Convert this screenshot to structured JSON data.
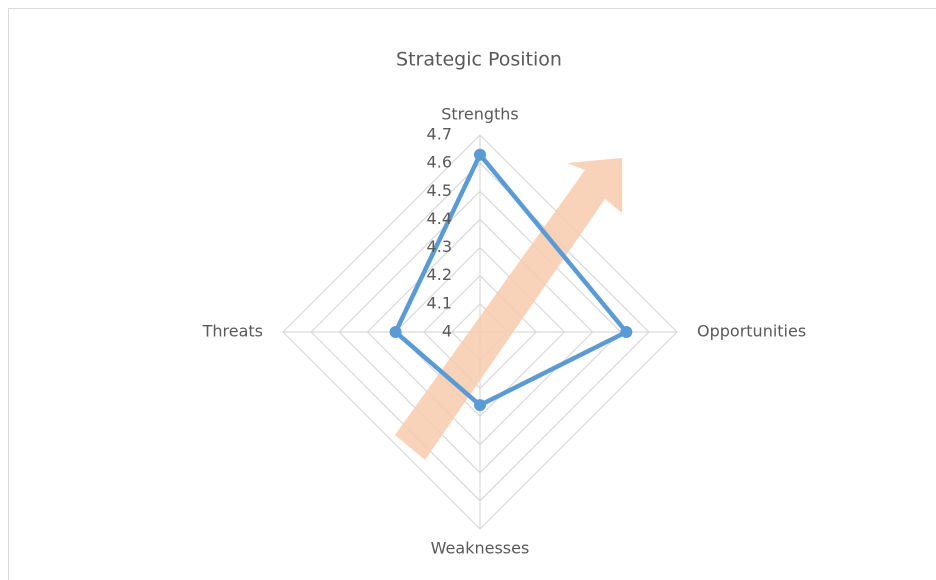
{
  "chart_data": {
    "type": "radar",
    "title": "Strategic Position",
    "categories": [
      "Strengths",
      "Opportunities",
      "Weaknesses",
      "Threats"
    ],
    "series": [
      {
        "color": "#5b9bd5",
        "values": [
          4.63,
          4.52,
          4.26,
          4.3
        ]
      }
    ],
    "rlim": [
      4,
      4.7
    ],
    "rticks": [
      4,
      4.1,
      4.2,
      4.3,
      4.4,
      4.5,
      4.6,
      4.7
    ],
    "grid": true
  }
}
